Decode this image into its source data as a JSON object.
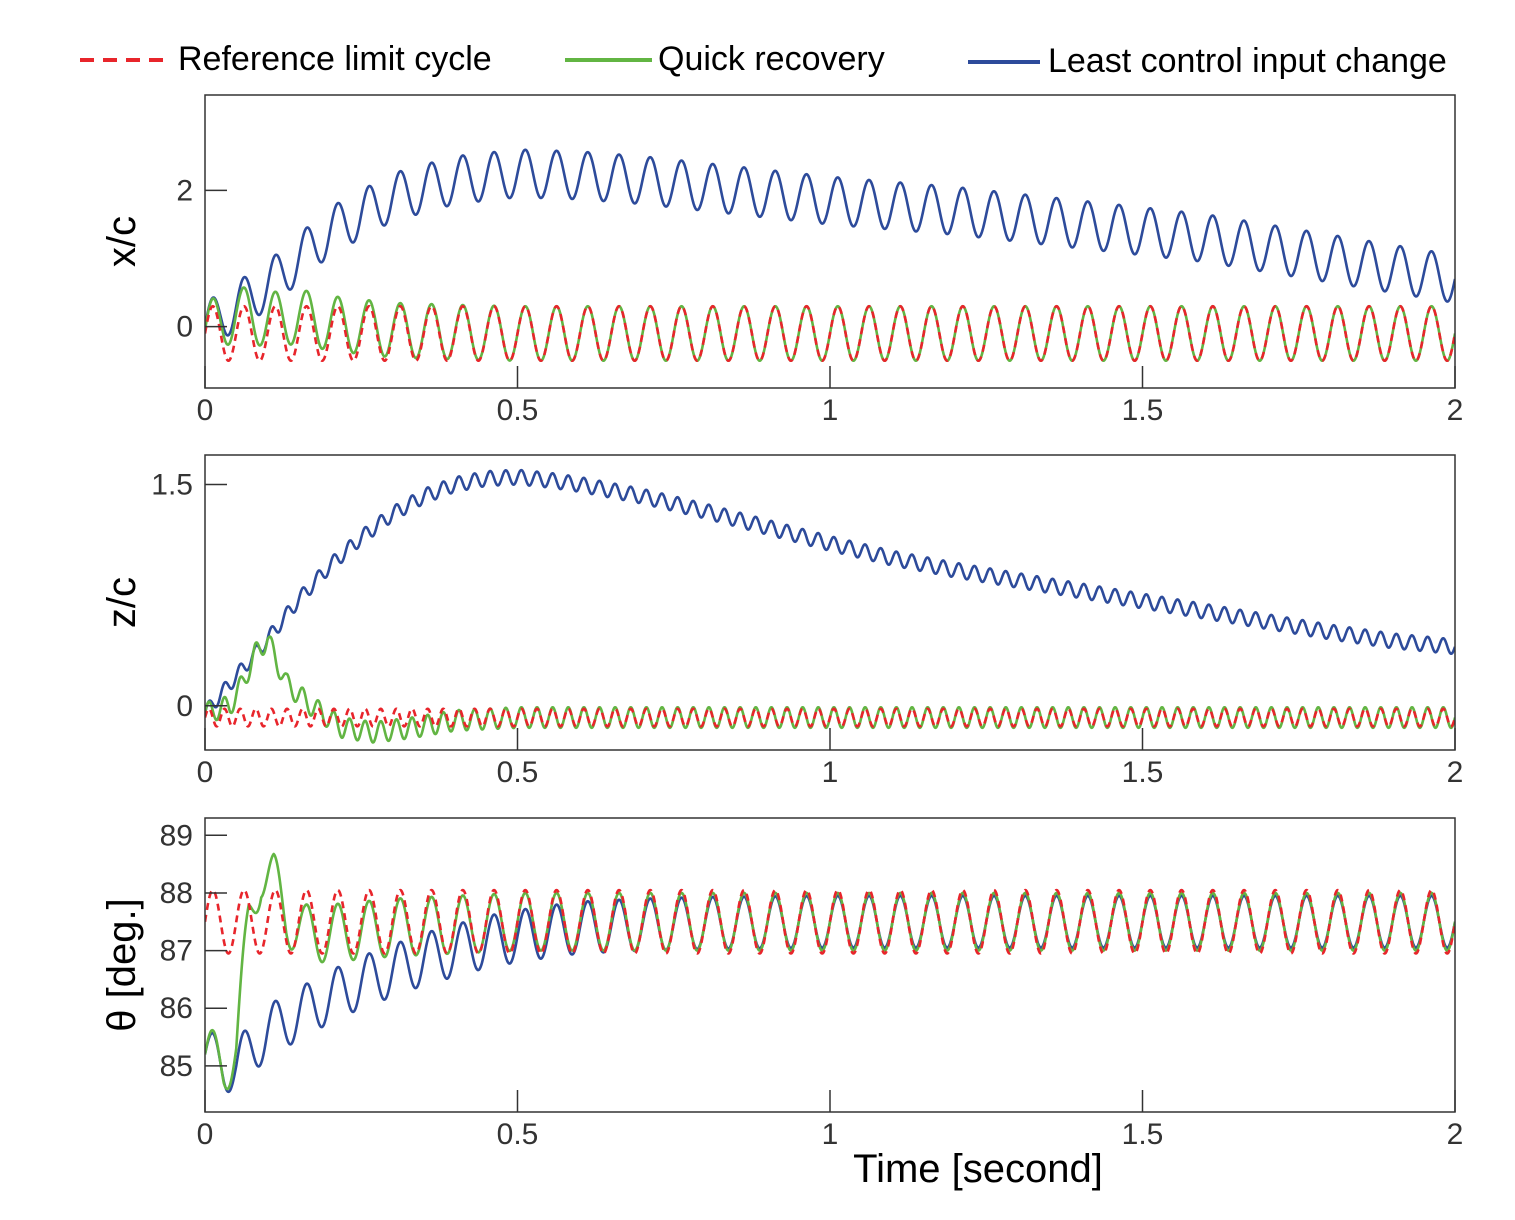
{
  "chart_data": {
    "type": "line",
    "legend": {
      "placement": "top",
      "entries": [
        {
          "name": "Reference limit cycle",
          "color": "#e8252b",
          "style": "dashed"
        },
        {
          "name": "Quick recovery",
          "color": "#62b543",
          "style": "solid"
        },
        {
          "name": "Least control input change",
          "color": "#2d4b9b",
          "style": "solid"
        }
      ]
    },
    "xlabel": "Time [second]",
    "xlim": [
      0,
      2
    ],
    "x_ticks": [
      0,
      0.5,
      1,
      1.5,
      2
    ],
    "x_tick_labels": [
      "0",
      "0.5",
      "1",
      "1.5",
      "2"
    ],
    "panels": [
      {
        "ylabel": "x/c",
        "ylim": [
          -0.9,
          3.4
        ],
        "y_ticks": [
          0,
          2
        ],
        "y_tick_labels": [
          "0",
          "2"
        ],
        "oscillation_frequency": 20,
        "series": [
          {
            "name": "Reference limit cycle",
            "mean": -0.1,
            "amplitude": 0.4,
            "x": [
              0,
              0.15,
              0.3,
              0.5,
              1.0,
              1.5,
              2.0
            ],
            "y": [
              -0.1,
              -0.1,
              -0.1,
              -0.1,
              -0.1,
              -0.1,
              -0.1
            ]
          },
          {
            "name": "Quick recovery",
            "mean": -0.1,
            "amplitude": 0.4,
            "x": [
              0,
              0.05,
              0.1,
              0.15,
              0.2,
              0.25,
              0.3,
              0.4,
              0.5,
              1.0,
              1.5,
              2.0
            ],
            "y": [
              -0.05,
              0.2,
              0.1,
              0.15,
              0.05,
              0.0,
              -0.05,
              -0.08,
              -0.1,
              -0.1,
              -0.1,
              -0.1
            ]
          },
          {
            "name": "Least control input change",
            "amplitude": 0.35,
            "x": [
              0,
              0.05,
              0.1,
              0.15,
              0.2,
              0.3,
              0.4,
              0.5,
              0.6,
              0.7,
              0.8,
              0.9,
              1.0,
              1.2,
              1.4,
              1.6,
              1.8,
              2.0
            ],
            "y": [
              0.0,
              0.3,
              0.6,
              1.0,
              1.4,
              1.9,
              2.15,
              2.25,
              2.22,
              2.15,
              2.05,
              1.95,
              1.85,
              1.7,
              1.5,
              1.3,
              1.0,
              0.7
            ]
          }
        ]
      },
      {
        "ylabel": "z/c",
        "ylim": [
          -0.3,
          1.7
        ],
        "y_ticks": [
          0,
          1.5
        ],
        "y_tick_labels": [
          "0",
          "1.5"
        ],
        "oscillation_frequency": 40,
        "series": [
          {
            "name": "Reference limit cycle",
            "mean": -0.08,
            "amplitude": 0.06,
            "x": [
              0,
              0.5,
              1.0,
              1.5,
              2.0
            ],
            "y": [
              -0.08,
              -0.08,
              -0.08,
              -0.08,
              -0.08
            ]
          },
          {
            "name": "Quick recovery",
            "amplitude": 0.07,
            "x": [
              0,
              0.04,
              0.06,
              0.08,
              0.1,
              0.13,
              0.17,
              0.22,
              0.27,
              0.33,
              0.4,
              0.5,
              1.0,
              1.5,
              2.0
            ],
            "y": [
              -0.05,
              0.0,
              0.15,
              0.35,
              0.45,
              0.15,
              0.0,
              -0.15,
              -0.18,
              -0.15,
              -0.1,
              -0.08,
              -0.08,
              -0.08,
              -0.08
            ]
          },
          {
            "name": "Least control input change",
            "amplitude": 0.05,
            "x": [
              0,
              0.05,
              0.1,
              0.15,
              0.2,
              0.25,
              0.3,
              0.35,
              0.4,
              0.45,
              0.5,
              0.55,
              0.6,
              0.7,
              0.8,
              0.9,
              1.0,
              1.1,
              1.2,
              1.3,
              1.4,
              1.5,
              1.6,
              1.7,
              1.8,
              1.9,
              2.0
            ],
            "y": [
              -0.05,
              0.2,
              0.45,
              0.72,
              0.95,
              1.14,
              1.3,
              1.42,
              1.5,
              1.54,
              1.55,
              1.53,
              1.5,
              1.42,
              1.32,
              1.21,
              1.1,
              1.0,
              0.92,
              0.85,
              0.78,
              0.71,
              0.64,
              0.57,
              0.5,
              0.44,
              0.4
            ]
          }
        ]
      },
      {
        "ylabel": "θ [deg.]",
        "ylim": [
          84.2,
          89.3
        ],
        "y_ticks": [
          85,
          86,
          87,
          88,
          89
        ],
        "y_tick_labels": [
          "85",
          "86",
          "87",
          "88",
          "89"
        ],
        "oscillation_frequency": 20,
        "series": [
          {
            "name": "Reference limit cycle",
            "mean": 87.5,
            "amplitude": 0.55,
            "x": [
              0,
              0.5,
              1.0,
              1.5,
              2.0
            ],
            "y": [
              87.5,
              87.5,
              87.5,
              87.5,
              87.5
            ]
          },
          {
            "name": "Quick recovery",
            "amplitude": 0.5,
            "x": [
              0,
              0.03,
              0.05,
              0.07,
              0.09,
              0.11,
              0.13,
              0.16,
              0.2,
              0.3,
              0.4,
              0.5,
              1.0,
              1.5,
              2.0
            ],
            "y": [
              85.2,
              85.0,
              85.3,
              87.5,
              88.4,
              88.2,
              87.6,
              87.3,
              87.3,
              87.4,
              87.45,
              87.5,
              87.5,
              87.5,
              87.5
            ]
          },
          {
            "name": "Least control input change",
            "amplitude": 0.45,
            "x": [
              0,
              0.03,
              0.05,
              0.1,
              0.15,
              0.2,
              0.25,
              0.3,
              0.35,
              0.4,
              0.45,
              0.5,
              0.55,
              0.6,
              0.7,
              0.8,
              1.0,
              1.5,
              2.0
            ],
            "y": [
              85.2,
              85.0,
              85.0,
              85.6,
              85.9,
              86.2,
              86.45,
              86.65,
              86.85,
              87.0,
              87.15,
              87.25,
              87.33,
              87.4,
              87.45,
              87.48,
              87.5,
              87.5,
              87.5
            ]
          }
        ]
      }
    ]
  }
}
